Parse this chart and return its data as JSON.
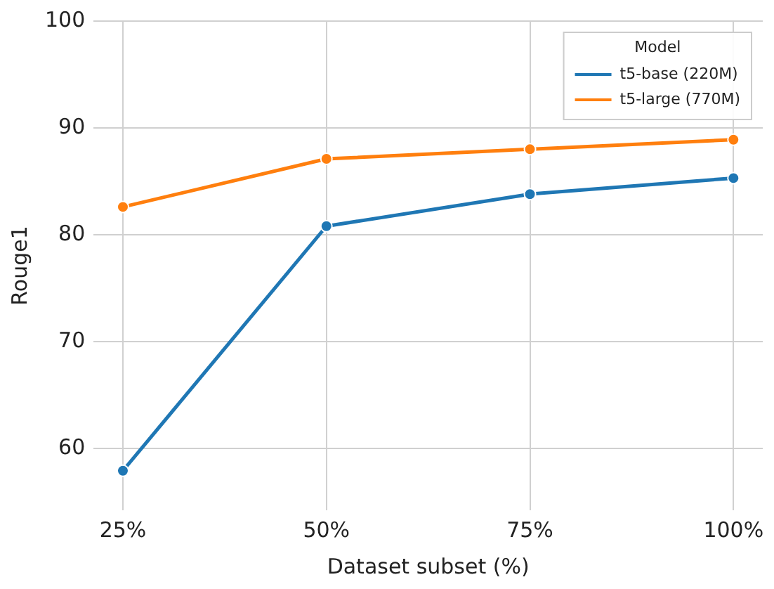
{
  "chart_data": {
    "type": "line",
    "xlabel": "Dataset subset (%)",
    "ylabel": "Rouge1",
    "legend_title": "Model",
    "x": [
      25,
      50,
      75,
      100
    ],
    "series": [
      {
        "name": "t5-base (220M)",
        "color": "#1f77b4",
        "values": [
          57.9,
          80.8,
          83.8,
          85.3
        ]
      },
      {
        "name": "t5-large (770M)",
        "color": "#ff7f0e",
        "values": [
          82.6,
          87.1,
          88.0,
          88.9
        ]
      }
    ],
    "xlim": [
      21.4,
      103.6
    ],
    "xticks": [
      {
        "value": 25,
        "label": "25%"
      },
      {
        "value": 50,
        "label": "50%"
      },
      {
        "value": 75,
        "label": "75%"
      },
      {
        "value": 100,
        "label": "100%"
      }
    ],
    "ylim": [
      54.2,
      100
    ],
    "yticks": [
      60,
      70,
      80,
      90,
      100
    ],
    "grid": true,
    "legend": "top right",
    "marker": "circle",
    "line_style": "solid"
  }
}
